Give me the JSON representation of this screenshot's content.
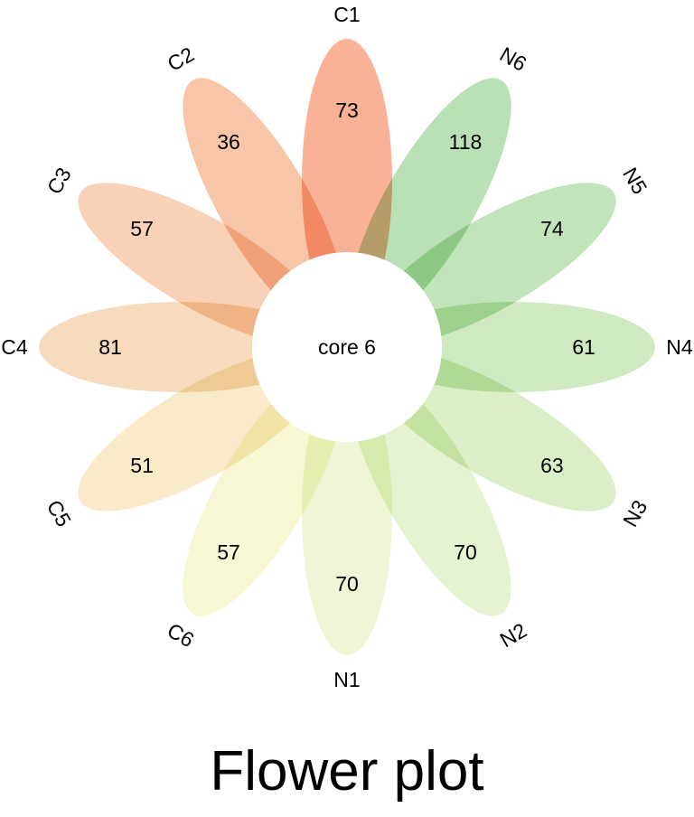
{
  "chart_data": {
    "type": "flower",
    "title": "Flower plot",
    "core": {
      "label": "core",
      "value": 6
    },
    "petals": [
      {
        "name": "C1",
        "value": 73,
        "color": "#f6946c"
      },
      {
        "name": "N6",
        "value": 118,
        "color": "#9fd49a"
      },
      {
        "name": "N5",
        "value": 74,
        "color": "#a9d9a0"
      },
      {
        "name": "N4",
        "value": 61,
        "color": "#bde1a8"
      },
      {
        "name": "N3",
        "value": 63,
        "color": "#cce8b2"
      },
      {
        "name": "N2",
        "value": 70,
        "color": "#dcefbe"
      },
      {
        "name": "N1",
        "value": 70,
        "color": "#e8f3c6"
      },
      {
        "name": "C6",
        "value": 57,
        "color": "#f4f4c2"
      },
      {
        "name": "C5",
        "value": 51,
        "color": "#f6e3b4"
      },
      {
        "name": "C4",
        "value": 81,
        "color": "#f2cda2"
      },
      {
        "name": "C3",
        "value": 57,
        "color": "#f5bf9a"
      },
      {
        "name": "C2",
        "value": 36,
        "color": "#f4ae87"
      }
    ]
  }
}
